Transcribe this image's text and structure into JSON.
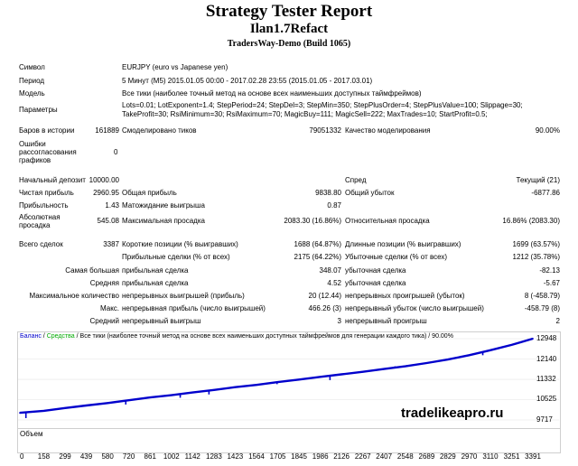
{
  "header": {
    "title": "Strategy Tester Report",
    "ea": "Ilan1.7Refact",
    "server": "TradersWay-Demo (Build 1065)"
  },
  "info": [
    {
      "label": "Символ",
      "value": "EURJPY (euro vs Japanese yen)"
    },
    {
      "label": "Период",
      "value": "5 Минут (M5) 2015.01.05 00:00 - 2017.02.28 23:55 (2015.01.05 - 2017.03.01)"
    },
    {
      "label": "Модель",
      "value": "Все тики (наиболее точный метод на основе всех наименьших доступных таймфреймов)"
    },
    {
      "label": "Параметры",
      "value": "Lots=0.01; LotExponent=1.4; StepPeriod=24; StepDel=3; StepMin=350; StepPlusOrder=4; StepPlusValue=100; Slippage=30;",
      "value2": "TakeProfit=30; RsiMinimum=30; RsiMaximum=70; MagicBuy=111; MagicSell=222; MaxTrades=10; StartProfit=0.5;"
    }
  ],
  "bars": {
    "label": "Баров в истории",
    "value": "161889",
    "ticks_label": "Смоделировано тиков",
    "ticks_value": "79051332",
    "quality_label": "Качество моделирования",
    "quality_value": "90.00%"
  },
  "errors": {
    "label_lines": [
      "Ошибки",
      "рассогласования",
      "графиков"
    ],
    "value": "0"
  },
  "stats": {
    "deposit_label": "Начальный депозит",
    "deposit_value": "10000.00",
    "spread_label": "Спред",
    "spread_value": "Текущий (21)",
    "net_label": "Чистая прибыль",
    "net_value": "2960.95",
    "gross_profit_label": "Общая прибыль",
    "gross_profit_value": "9838.80",
    "gross_loss_label": "Общий убыток",
    "gross_loss_value": "-6877.86",
    "pf_label": "Прибыльность",
    "pf_value": "1.43",
    "exp_label": "Матожидание выигрыша",
    "exp_value": "0.87",
    "abs_dd_label_lines": [
      "Абсолютная",
      "просадка"
    ],
    "abs_dd_value": "545.08",
    "max_dd_label": "Максимальная просадка",
    "max_dd_value": "2083.30 (16.86%)",
    "rel_dd_label": "Относительная просадка",
    "rel_dd_value": "16.86% (2083.30)",
    "trades_label": "Всего сделок",
    "trades_value": "3387",
    "short_label": "Короткие позиции (% выигравших)",
    "short_value": "1688 (64.87%)",
    "long_label": "Длинные позиции (% выигравших)",
    "long_value": "1699 (63.57%)",
    "win_label": "Прибыльные сделки (% от всех)",
    "win_value": "2175 (64.22%)",
    "loss_label": "Убыточные сделки (% от всех)",
    "loss_value": "1212 (35.78%)",
    "largest_label": "Самая большая",
    "largest_win_label": "прибыльная сделка",
    "largest_win_value": "348.07",
    "largest_loss_label": "убыточная сделка",
    "largest_loss_value": "-82.13",
    "average_label": "Средняя",
    "avg_win_label": "прибыльная сделка",
    "avg_win_value": "4.52",
    "avg_loss_label": "убыточная сделка",
    "avg_loss_value": "-5.67",
    "max_count_label": "Максимальное количество",
    "mc_win_label": "непрерывных выигрышей (прибыль)",
    "mc_win_value": "20 (12.44)",
    "mc_loss_label": "непрерывных проигрышей (убыток)",
    "mc_loss_value": "8 (-458.79)",
    "max_label": "Макс.",
    "mx_win_label": "непрерывная прибыль (число выигрышей)",
    "mx_win_value": "466.26 (3)",
    "mx_loss_label": "непрерывный убыток (число выигрышей)",
    "mx_loss_value": "-458.79 (8)",
    "avg2_label": "Средний",
    "av_win_label": "непрерывный выигрыш",
    "av_win_value": "3",
    "av_loss_label": "непрерывный проигрыш",
    "av_loss_value": "2"
  },
  "chart_data": {
    "type": "line",
    "legend_text_balance": "Баланс",
    "legend_text_equity": "Средства",
    "legend_text_rest": "/ Все тики (наиболее точный метод на основе всех наименьших доступных таймфреймов для генерации каждого тика) / 90.00%",
    "volume_label": "Объем",
    "yticks": [
      "12948",
      "12140",
      "11332",
      "10525",
      "9717"
    ],
    "ylim": [
      9717,
      12948
    ],
    "xticks": [
      "0",
      "158",
      "299",
      "439",
      "580",
      "720",
      "861",
      "1002",
      "1142",
      "1283",
      "1423",
      "1564",
      "1705",
      "1845",
      "1986",
      "2126",
      "2267",
      "2407",
      "2548",
      "2689",
      "2829",
      "2970",
      "3110",
      "3251",
      "3391"
    ],
    "xlim": [
      0,
      3391
    ],
    "series": [
      {
        "name": "Баланс",
        "color": "#0000cc",
        "x": [
          0,
          158,
          299,
          439,
          580,
          720,
          861,
          1002,
          1142,
          1283,
          1423,
          1564,
          1705,
          1845,
          1986,
          2126,
          2267,
          2407,
          2548,
          2689,
          2829,
          2970,
          3110,
          3251,
          3391
        ],
        "y": [
          10000,
          10080,
          10190,
          10290,
          10390,
          10500,
          10610,
          10700,
          10810,
          10910,
          11020,
          11110,
          11220,
          11320,
          11430,
          11530,
          11630,
          11740,
          11850,
          11980,
          12120,
          12290,
          12490,
          12700,
          12948
        ]
      }
    ],
    "dips": [
      {
        "x": 40,
        "y": 9790
      },
      {
        "x": 700,
        "y": 10330
      },
      {
        "x": 1060,
        "y": 10600
      },
      {
        "x": 1250,
        "y": 10730
      },
      {
        "x": 1700,
        "y": 11140
      },
      {
        "x": 2050,
        "y": 11300
      },
      {
        "x": 2480,
        "y": 11850
      },
      {
        "x": 3060,
        "y": 12290
      }
    ]
  },
  "watermark": "tradelikeapro.ru",
  "colors": {
    "balance": "#0000cc",
    "equity": "#00aa00",
    "volume": "#1e9a3a"
  }
}
